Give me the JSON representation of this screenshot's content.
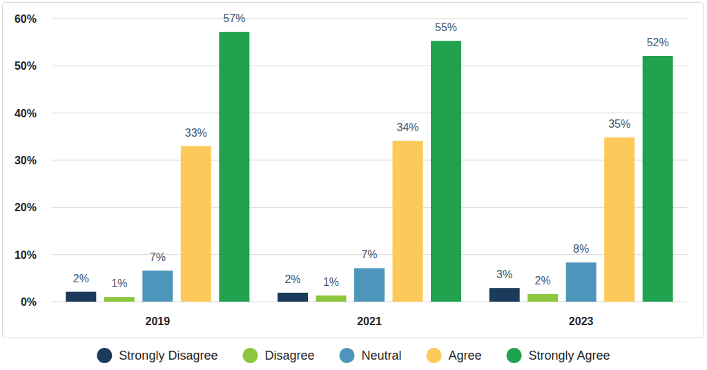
{
  "chart_data": {
    "type": "bar",
    "categories": [
      "2019",
      "2021",
      "2023"
    ],
    "series": [
      {
        "name": "Strongly Disagree",
        "color": "#1b3a5c",
        "values": [
          2.1,
          1.9,
          2.9
        ],
        "value_labels": [
          "2%",
          "2%",
          "3%"
        ]
      },
      {
        "name": "Disagree",
        "color": "#8cc63f",
        "values": [
          1.0,
          1.3,
          1.6
        ],
        "value_labels": [
          "1%",
          "1%",
          "2%"
        ]
      },
      {
        "name": "Neutral",
        "color": "#4e95bb",
        "values": [
          6.6,
          7.1,
          8.3
        ],
        "value_labels": [
          "7%",
          "7%",
          "8%"
        ]
      },
      {
        "name": "Agree",
        "color": "#fdc95a",
        "values": [
          33.0,
          34.1,
          34.8
        ],
        "value_labels": [
          "33%",
          "34%",
          "35%"
        ]
      },
      {
        "name": "Strongly Agree",
        "color": "#21a24f",
        "values": [
          57.2,
          55.3,
          52.1
        ],
        "value_labels": [
          "57%",
          "55%",
          "52%"
        ]
      }
    ],
    "ylim": [
      0,
      60
    ],
    "yticks": [
      {
        "value": 0,
        "label": "0%"
      },
      {
        "value": 10,
        "label": "10%"
      },
      {
        "value": 20,
        "label": "20%"
      },
      {
        "value": 30,
        "label": "30%"
      },
      {
        "value": 40,
        "label": "40%"
      },
      {
        "value": 50,
        "label": "50%"
      },
      {
        "value": 60,
        "label": "60%"
      }
    ],
    "grid": true,
    "legend": "bottom",
    "data_labels": true
  }
}
